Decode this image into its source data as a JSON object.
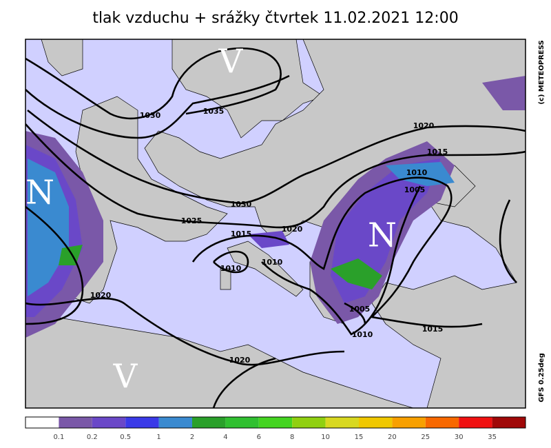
{
  "header": {
    "title": "tlak vzduchu + srážky čtvrtek 11.02.2021 12:00"
  },
  "side_texts": {
    "copyright": "(c) METEOPRESS",
    "model": "GFS 0.25deg"
  },
  "pressure_centers": [
    "V",
    "N",
    "N",
    "V"
  ],
  "isobar_labels": [
    "1030",
    "1035",
    "1030",
    "1025",
    "1020",
    "1015",
    "1010",
    "1010",
    "1020",
    "1020",
    "1015",
    "1010",
    "1005",
    "1005",
    "1010",
    "1015",
    "1020"
  ],
  "legend": {
    "labels": [
      0.1,
      0.2,
      0.5,
      1,
      2,
      4,
      6,
      8,
      10,
      15,
      20,
      25,
      30,
      35
    ],
    "colors": [
      "#ffffff",
      "#7a58a8",
      "#6a48c8",
      "#3a3ae8",
      "#3a8ad0",
      "#2aa02a",
      "#30c030",
      "#44d420",
      "#90d010",
      "#d8d820",
      "#f0c800",
      "#f8a000",
      "#f86800",
      "#f01010",
      "#a00808"
    ]
  }
}
